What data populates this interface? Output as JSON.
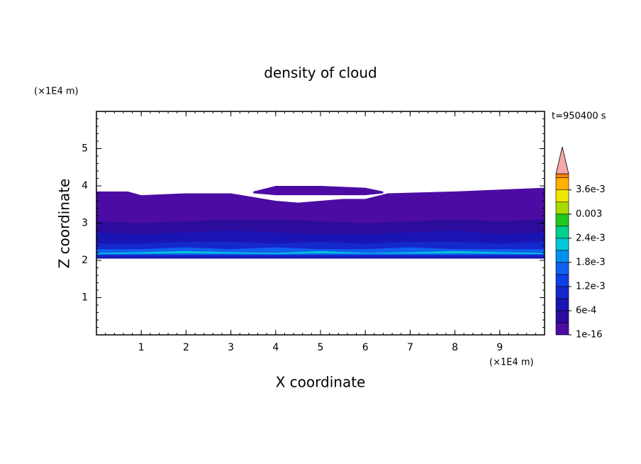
{
  "chart_data": {
    "type": "contour",
    "title": "density of cloud",
    "xlabel": "X coordinate",
    "ylabel": "Z coordinate",
    "x_unit": "(×1E4 m)",
    "y_unit": "(×1E4 m)",
    "time_label": "t=950400 s",
    "xlim": [
      0,
      10
    ],
    "ylim": [
      0,
      6
    ],
    "xticks": [
      1,
      2,
      3,
      4,
      5,
      6,
      7,
      8,
      9
    ],
    "yticks": [
      1,
      2,
      3,
      4,
      5
    ],
    "colorbar": {
      "lim": [
        1e-16,
        0.004
      ],
      "levels": [
        1e-16,
        0.0003,
        0.0006,
        0.0009,
        0.0012,
        0.0015,
        0.0018,
        0.0021,
        0.0024,
        0.0027,
        0.003,
        0.0033,
        0.0036,
        0.0039
      ],
      "colors": [
        "#4c0ca4",
        "#2c0c9c",
        "#1a14b4",
        "#1428cc",
        "#0c40e4",
        "#1060f0",
        "#0090f0",
        "#00c8d8",
        "#00d090",
        "#20c820",
        "#a8dc00",
        "#f0e800",
        "#ffb000",
        "#ff8000"
      ],
      "extend_color": "#f4a8a8",
      "ticks": [
        {
          "value": 1e-16,
          "label": "1e-16"
        },
        {
          "value": 0.0006,
          "label": "6e-4"
        },
        {
          "value": 0.0012,
          "label": "1.2e-3"
        },
        {
          "value": 0.0018,
          "label": "1.8e-3"
        },
        {
          "value": 0.0024,
          "label": "2.4e-3"
        },
        0.003,
        {
          "value": 0.0036,
          "label": "3.6e-3"
        }
      ]
    },
    "layers": [
      {
        "level": 0,
        "x": [
          0,
          0.7,
          1,
          2,
          3,
          3.5,
          4,
          4.5,
          5,
          5.5,
          6,
          6.5,
          8,
          9,
          10
        ],
        "top": [
          3.85,
          3.85,
          3.75,
          3.8,
          3.8,
          3.7,
          3.6,
          3.55,
          3.6,
          3.65,
          3.65,
          3.8,
          3.85,
          3.9,
          3.95
        ],
        "bottom": [
          2.05,
          2.05,
          2.05,
          2.05,
          2.05,
          2.05,
          2.05,
          2.05,
          2.05,
          2.05,
          2.05,
          2.05,
          2.05,
          2.05,
          2.05
        ]
      },
      {
        "level": 0,
        "x": [
          3.5,
          4,
          5,
          6,
          6.4
        ],
        "top": [
          3.85,
          4,
          4,
          3.95,
          3.85
        ],
        "bottom": [
          3.8,
          3.75,
          3.75,
          3.75,
          3.8
        ]
      },
      {
        "level": 1,
        "x": [
          0,
          1,
          2,
          3,
          4,
          5,
          6,
          7,
          8,
          9,
          10
        ],
        "top": [
          3.05,
          3.0,
          3.05,
          3.1,
          3.1,
          3.05,
          3.0,
          3.05,
          3.1,
          3.05,
          3.1
        ],
        "bottom": [
          2.05,
          2.05,
          2.05,
          2.05,
          2.05,
          2.05,
          2.05,
          2.05,
          2.05,
          2.05,
          2.05
        ]
      },
      {
        "level": 2,
        "x": [
          0,
          1,
          2,
          3,
          4,
          5,
          6,
          7,
          8,
          9,
          10
        ],
        "top": [
          2.75,
          2.7,
          2.75,
          2.8,
          2.75,
          2.7,
          2.7,
          2.75,
          2.8,
          2.7,
          2.75
        ],
        "bottom": [
          2.05,
          2.05,
          2.05,
          2.05,
          2.05,
          2.05,
          2.05,
          2.05,
          2.05,
          2.05,
          2.05
        ]
      },
      {
        "level": 3,
        "x": [
          0,
          1,
          2,
          3,
          4,
          5,
          6,
          7,
          8,
          9,
          10
        ],
        "top": [
          2.45,
          2.45,
          2.5,
          2.5,
          2.45,
          2.5,
          2.45,
          2.5,
          2.5,
          2.45,
          2.5
        ],
        "bottom": [
          2.1,
          2.1,
          2.1,
          2.1,
          2.1,
          2.1,
          2.1,
          2.1,
          2.1,
          2.1,
          2.1
        ]
      },
      {
        "level": 5,
        "x": [
          0,
          1,
          2,
          3,
          4,
          5,
          6,
          7,
          8,
          9,
          10
        ],
        "top": [
          2.3,
          2.3,
          2.35,
          2.3,
          2.35,
          2.3,
          2.3,
          2.35,
          2.3,
          2.3,
          2.3
        ],
        "bottom": [
          2.15,
          2.15,
          2.15,
          2.15,
          2.15,
          2.15,
          2.15,
          2.15,
          2.15,
          2.15,
          2.15
        ]
      },
      {
        "level": 7,
        "x": [
          0,
          1,
          2,
          3,
          4,
          5,
          6,
          7,
          8,
          9,
          10
        ],
        "top": [
          2.2,
          2.22,
          2.25,
          2.22,
          2.2,
          2.25,
          2.2,
          2.22,
          2.25,
          2.22,
          2.2
        ],
        "bottom": [
          2.17,
          2.18,
          2.19,
          2.18,
          2.17,
          2.19,
          2.18,
          2.18,
          2.19,
          2.18,
          2.17
        ]
      }
    ]
  }
}
